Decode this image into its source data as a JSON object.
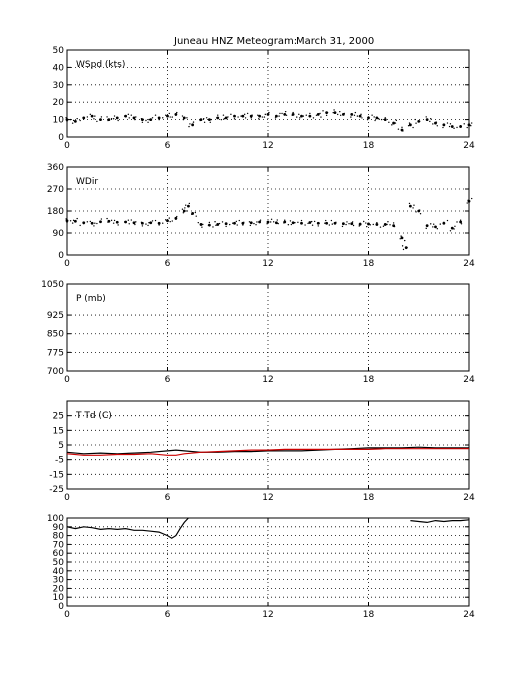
{
  "figure": {
    "title_station": "Juneau HNZ Meteogram:",
    "title_date": "March 31, 2000"
  },
  "chart_data": [
    {
      "type": "scatter",
      "label": "WSpd (kts)",
      "xlim": [
        0,
        24
      ],
      "ylim": [
        0,
        50
      ],
      "xticks": [
        0,
        6,
        12,
        18,
        24
      ],
      "yticks": [
        0,
        10,
        20,
        30,
        40,
        50
      ],
      "grid": true,
      "series": [
        {
          "color": "#000000",
          "x": [
            0,
            0.5,
            1,
            1.5,
            2,
            2.5,
            3,
            3.5,
            4,
            4.5,
            5,
            5.5,
            6,
            6.5,
            7,
            7.5,
            8,
            8.5,
            9,
            9.5,
            10,
            10.5,
            11,
            11.5,
            12,
            12.5,
            13,
            13.5,
            14,
            14.5,
            15,
            15.5,
            16,
            16.5,
            17,
            17.5,
            18,
            18.5,
            19,
            19.5,
            20,
            20.5,
            21,
            21.5,
            22,
            22.5,
            23,
            23.5,
            24
          ],
          "y": [
            10,
            9,
            11,
            12,
            10,
            10,
            11,
            12,
            11,
            10,
            10,
            11,
            12,
            13,
            11,
            7,
            10,
            10,
            11,
            11,
            12,
            12,
            12,
            12,
            13,
            12,
            13,
            13,
            12,
            12,
            13,
            14,
            14,
            13,
            13,
            12,
            11,
            11,
            10,
            8,
            4,
            7,
            9,
            10,
            8,
            7,
            6,
            6,
            7
          ]
        }
      ]
    },
    {
      "type": "scatter",
      "label": "WDir",
      "xlim": [
        0,
        24
      ],
      "ylim": [
        0,
        360
      ],
      "xticks": [
        0,
        6,
        12,
        18,
        24
      ],
      "yticks": [
        0,
        90,
        180,
        270,
        360
      ],
      "grid": true,
      "series": [
        {
          "color": "#000000",
          "x": [
            0,
            0.5,
            1,
            1.5,
            2,
            2.5,
            3,
            3.5,
            4,
            4.5,
            5,
            5.5,
            6,
            6.5,
            7,
            7.25,
            7.5,
            8,
            8.5,
            9,
            9.5,
            10,
            10.5,
            11,
            11.5,
            12,
            12.5,
            13,
            13.5,
            14,
            14.5,
            15,
            15.5,
            16,
            16.5,
            17,
            17.5,
            18,
            18.5,
            19,
            19.5,
            20,
            20.25,
            20.5,
            21,
            21.5,
            22,
            22.5,
            23,
            23.5,
            24
          ],
          "y": [
            140,
            138,
            132,
            130,
            136,
            138,
            134,
            135,
            132,
            130,
            132,
            130,
            140,
            150,
            180,
            200,
            170,
            125,
            122,
            125,
            128,
            130,
            130,
            132,
            135,
            135,
            132,
            135,
            132,
            130,
            133,
            130,
            130,
            130,
            128,
            128,
            126,
            127,
            125,
            125,
            120,
            70,
            30,
            200,
            180,
            120,
            115,
            130,
            110,
            135,
            220
          ]
        }
      ]
    },
    {
      "type": "line",
      "label": "P (mb)",
      "xlim": [
        0,
        24
      ],
      "ylim": [
        700,
        1050
      ],
      "xticks": [
        0,
        6,
        12,
        18,
        24
      ],
      "yticks": [
        700,
        775,
        850,
        925,
        1050
      ],
      "grid": true,
      "series": []
    },
    {
      "type": "line",
      "label": "T Td (C)",
      "xlim": [
        0,
        24
      ],
      "ylim": [
        -25,
        35
      ],
      "xticks": [
        0,
        6,
        12,
        18,
        24
      ],
      "yticks": [
        -25,
        -15,
        -5,
        5,
        15,
        25
      ],
      "grid": true,
      "series": [
        {
          "color": "#000000",
          "x": [
            0,
            1,
            2,
            3,
            4,
            5,
            6,
            6.5,
            7,
            8,
            9,
            10,
            11,
            12,
            13,
            14,
            15,
            16,
            17,
            18,
            19,
            20,
            21,
            22,
            23,
            24
          ],
          "y": [
            0,
            -1,
            -0.5,
            -1,
            -0.5,
            0,
            1,
            1.5,
            1,
            0,
            0,
            0.5,
            0.5,
            1,
            1,
            1,
            1.5,
            2,
            2.5,
            3,
            3,
            3,
            3.5,
            3,
            3,
            3
          ]
        },
        {
          "color": "#cc0000",
          "x": [
            0,
            1,
            2,
            3,
            4,
            5,
            6,
            6.5,
            7,
            8,
            9,
            10,
            11,
            12,
            13,
            14,
            15,
            16,
            17,
            18,
            19,
            20,
            21,
            22,
            23,
            24
          ],
          "y": [
            -1,
            -2,
            -2,
            -1.5,
            -1.5,
            -1,
            -2,
            -2,
            -1,
            0,
            0.5,
            1,
            1.5,
            1.5,
            2,
            2,
            2,
            2,
            2,
            2,
            2.5,
            2.5,
            2.5,
            2.5,
            2.5,
            2.5
          ]
        }
      ]
    },
    {
      "type": "line",
      "label": "",
      "xlim": [
        0,
        24
      ],
      "ylim": [
        0,
        100
      ],
      "xticks": [
        0,
        6,
        12,
        18,
        24
      ],
      "yticks": [
        0,
        10,
        20,
        30,
        40,
        50,
        60,
        70,
        80,
        90,
        100
      ],
      "grid": true,
      "series": [
        {
          "color": "#000000",
          "x": [
            0,
            0.5,
            1,
            1.5,
            2,
            2.5,
            3,
            3.5,
            4,
            4.5,
            5,
            5.5,
            6,
            6.25,
            6.5,
            6.75,
            7,
            7.25
          ],
          "y": [
            90,
            88,
            90,
            89,
            87,
            88,
            87,
            88,
            86,
            86,
            85,
            84,
            80,
            77,
            80,
            88,
            95,
            100
          ]
        },
        {
          "color": "#000000",
          "x": [
            20.5,
            21,
            21.5,
            22,
            22.5,
            23,
            23.5,
            24
          ],
          "y": [
            97,
            96,
            95,
            97,
            96,
            97,
            97,
            98
          ]
        }
      ]
    }
  ]
}
